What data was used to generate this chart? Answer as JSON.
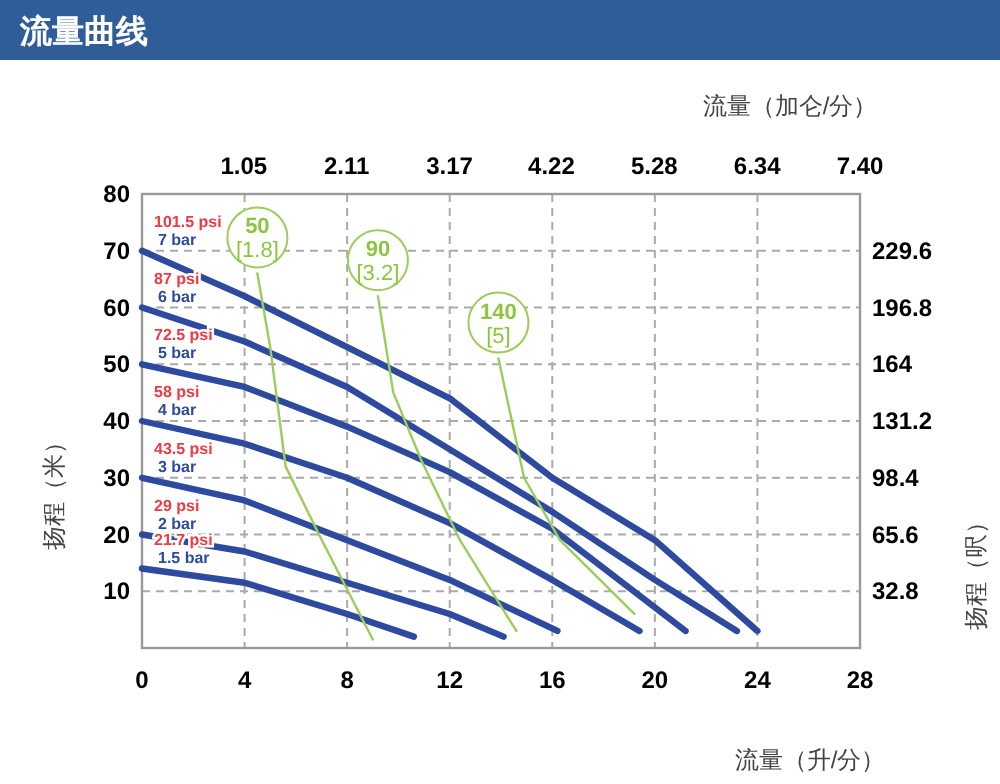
{
  "chart_data": {
    "type": "line",
    "title": "流量曲线",
    "xlabel": "流量（升/分）",
    "x2label": "流量（加仑/分）",
    "ylabel": "扬程（米）",
    "y2label": "扬程（呎）",
    "xlim": [
      0,
      28
    ],
    "xticks": [
      0,
      4,
      8,
      12,
      16,
      20,
      24,
      28
    ],
    "ylim": [
      0,
      80
    ],
    "yticks": [
      10,
      20,
      30,
      40,
      50,
      60,
      70,
      80
    ],
    "x2lim": [
      0,
      7.4
    ],
    "x2ticks": [
      1.05,
      2.11,
      3.17,
      4.22,
      5.28,
      6.34,
      {
        "value": 7.4,
        "label": "7.40"
      }
    ],
    "y2lim": [
      0,
      262.4
    ],
    "y2ticks": [
      32.8,
      65.6,
      98.4,
      131.2,
      164,
      196.8,
      229.6
    ],
    "grid": true,
    "line_style": "solid",
    "series": [
      {
        "name": "101.5 psi 7 bar",
        "color": "#2e4a9e",
        "x": [
          0,
          4,
          8,
          12,
          16,
          20,
          24
        ],
        "values": [
          70,
          62,
          53,
          44,
          30,
          19,
          3
        ]
      },
      {
        "name": "87 psi 6 bar",
        "color": "#2e4a9e",
        "x": [
          0,
          4,
          8,
          12,
          16,
          20,
          23.2
        ],
        "values": [
          60,
          54,
          46,
          35,
          24,
          12,
          3
        ]
      },
      {
        "name": "72.5 psi 5 bar",
        "color": "#2e4a9e",
        "x": [
          0,
          4,
          8,
          12,
          16,
          21.2
        ],
        "values": [
          50,
          46,
          39,
          31,
          21,
          3
        ]
      },
      {
        "name": "58 psi 4 bar",
        "color": "#2e4a9e",
        "x": [
          0,
          4,
          8,
          12,
          16,
          19.4
        ],
        "values": [
          40,
          36,
          30,
          22,
          12,
          3
        ]
      },
      {
        "name": "43.5 psi 3 bar",
        "color": "#2e4a9e",
        "x": [
          0,
          4,
          8,
          12,
          16.2
        ],
        "values": [
          30,
          26,
          19,
          12,
          3
        ]
      },
      {
        "name": "29 psi 2 bar",
        "color": "#2e4a9e",
        "x": [
          0,
          4,
          8,
          12,
          14.1
        ],
        "values": [
          20,
          17,
          11.5,
          6,
          2
        ]
      },
      {
        "name": "21.7 psi 1.5 bar",
        "color": "#2e4a9e",
        "x": [
          0,
          4,
          8,
          10.6
        ],
        "values": [
          14,
          11.5,
          6,
          2
        ]
      },
      {
        "name": "50 [1.8]",
        "color": "#9acd5a",
        "x": [
          4.5,
          5,
          5.6,
          6.9,
          9
        ],
        "values": [
          66,
          53,
          32,
          20,
          1.5
        ]
      },
      {
        "name": "90 [3.2]",
        "color": "#9acd5a",
        "x": [
          9.2,
          9.8,
          10.9,
          12.4,
          14.6
        ],
        "values": [
          62,
          45,
          33,
          19,
          3
        ]
      },
      {
        "name": "140 [5]",
        "color": "#9acd5a",
        "x": [
          13.9,
          14.9,
          16.3,
          19.2
        ],
        "values": [
          51,
          30,
          19,
          6
        ]
      }
    ]
  }
}
